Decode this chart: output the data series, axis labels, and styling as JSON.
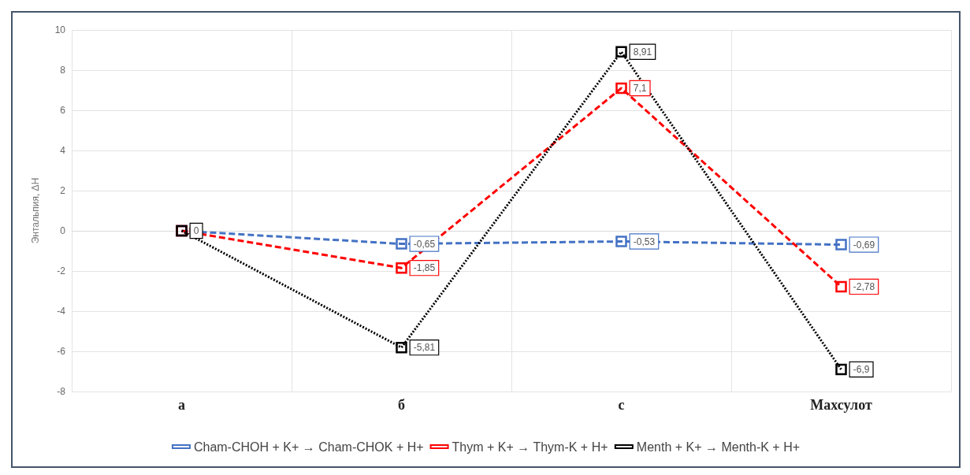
{
  "chart_data": {
    "type": "line",
    "ylabel": "Энтальпия, ΔН",
    "categories": [
      "а",
      "б",
      "с",
      "Махсулот"
    ],
    "series": [
      {
        "name": "Cham-CHOH + K+ → Cham-CHOK + H+",
        "color": "#4472c4",
        "line_style": "dashed",
        "values": [
          0,
          -0.65,
          -0.53,
          -0.69
        ],
        "value_labels": [
          null,
          "-0,65",
          "-0,53",
          "-0,69"
        ]
      },
      {
        "name": "Thym + K+ → Thym-K + H+",
        "color": "#ff0000",
        "line_style": "dashed",
        "values": [
          0,
          -1.85,
          7.1,
          -2.78
        ],
        "value_labels": [
          null,
          "-1,85",
          "7,1",
          "-2,78"
        ]
      },
      {
        "name": "Menth + K+ → Menth-K + H+",
        "color": "#000000",
        "line_style": "dotted",
        "values": [
          0,
          -5.81,
          8.91,
          -6.9
        ],
        "value_labels": [
          "0",
          "-5,81",
          "8,91",
          "-6,9"
        ]
      }
    ],
    "ylim": [
      -8,
      10
    ],
    "yticks": [
      -8,
      -6,
      -4,
      -2,
      0,
      2,
      4,
      6,
      8,
      10
    ],
    "grid": true,
    "legend": "bottom",
    "marker": "square"
  }
}
